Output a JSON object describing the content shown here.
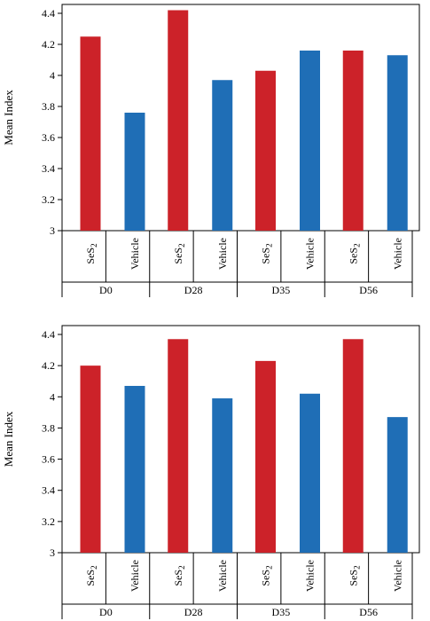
{
  "colors": {
    "SeS2": "#cc2229",
    "Vehicle": "#1f6eb6"
  },
  "chart_data": [
    {
      "type": "bar",
      "ylabel": "Mean Index",
      "ylim": [
        3,
        4.4
      ],
      "yticks": [
        "3",
        "3.2",
        "3.4",
        "3.6",
        "3.8",
        "4",
        "4.2",
        "4.4"
      ],
      "groups": [
        "D0",
        "D28",
        "D35",
        "D56"
      ],
      "treatments": [
        "SeS",
        "Vehicle"
      ],
      "treatment_subscripts": [
        "2",
        ""
      ],
      "values": {
        "SeS2": [
          4.25,
          4.42,
          4.03,
          4.16
        ],
        "Vehicle": [
          3.76,
          3.97,
          4.16,
          4.13
        ]
      }
    },
    {
      "type": "bar",
      "ylabel": "Mean Index",
      "ylim": [
        3,
        4.4
      ],
      "yticks": [
        "3",
        "3.2",
        "3.4",
        "3.6",
        "3.8",
        "4",
        "4.2",
        "4.4"
      ],
      "groups": [
        "D0",
        "D28",
        "D35",
        "D56"
      ],
      "treatments": [
        "SeS",
        "Vehicle"
      ],
      "treatment_subscripts": [
        "2",
        ""
      ],
      "values": {
        "SeS2": [
          4.2,
          4.37,
          4.23,
          4.37
        ],
        "Vehicle": [
          4.07,
          3.99,
          4.02,
          3.87
        ]
      }
    }
  ]
}
